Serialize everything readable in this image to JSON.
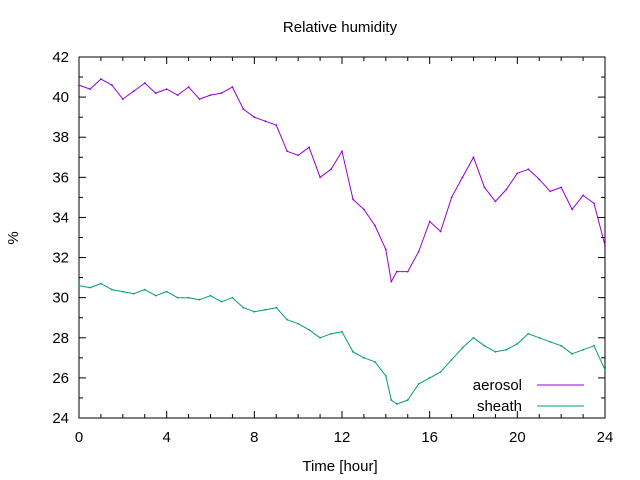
{
  "chart_data": {
    "type": "line",
    "title": "Relative humidity",
    "xlabel": "Time [hour]",
    "ylabel": "%",
    "xlim": [
      0,
      24
    ],
    "ylim": [
      24,
      42
    ],
    "x_ticks": [
      0,
      4,
      8,
      12,
      16,
      20,
      24
    ],
    "y_ticks": [
      24,
      26,
      28,
      30,
      32,
      34,
      36,
      38,
      40,
      42
    ],
    "grid": false,
    "legend_position": "bottom-right",
    "series": [
      {
        "name": "aerosol",
        "color": "#9400d3",
        "x": [
          0,
          0.5,
          1,
          1.5,
          2,
          2.5,
          3,
          3.5,
          4,
          4.5,
          5,
          5.5,
          6,
          6.5,
          7,
          7.5,
          8,
          8.5,
          9,
          9.5,
          10,
          10.5,
          11,
          11.5,
          12,
          12.5,
          13,
          13.5,
          14,
          14.25,
          14.5,
          15,
          15.5,
          16,
          16.5,
          17,
          17.5,
          18,
          18.5,
          19,
          19.5,
          20,
          20.5,
          21,
          21.5,
          22,
          22.5,
          23,
          23.5,
          24
        ],
        "values": [
          40.6,
          40.4,
          40.9,
          40.6,
          39.9,
          40.3,
          40.7,
          40.2,
          40.4,
          40.1,
          40.5,
          39.9,
          40.1,
          40.2,
          40.5,
          39.4,
          39.0,
          38.8,
          38.6,
          37.3,
          37.1,
          37.5,
          36.0,
          36.4,
          37.3,
          34.9,
          34.4,
          33.6,
          32.4,
          30.8,
          31.3,
          31.3,
          32.3,
          33.8,
          33.3,
          35.0,
          36.0,
          37.0,
          35.5,
          34.8,
          35.4,
          36.2,
          36.4,
          35.9,
          35.3,
          35.5,
          34.4,
          35.1,
          34.7,
          32.6
        ]
      },
      {
        "name": "sheath",
        "color": "#009e73",
        "x": [
          0,
          0.5,
          1,
          1.5,
          2,
          2.5,
          3,
          3.5,
          4,
          4.5,
          5,
          5.5,
          6,
          6.5,
          7,
          7.5,
          8,
          8.5,
          9,
          9.5,
          10,
          10.5,
          11,
          11.5,
          12,
          12.5,
          13,
          13.5,
          14,
          14.25,
          14.5,
          15,
          15.5,
          16,
          16.5,
          17,
          17.5,
          18,
          18.5,
          19,
          19.5,
          20,
          20.5,
          21,
          21.5,
          22,
          22.5,
          23,
          23.5,
          24
        ],
        "values": [
          30.6,
          30.5,
          30.7,
          30.4,
          30.3,
          30.2,
          30.4,
          30.1,
          30.3,
          30.0,
          30.0,
          29.9,
          30.1,
          29.8,
          30.0,
          29.5,
          29.3,
          29.4,
          29.5,
          28.9,
          28.7,
          28.4,
          28.0,
          28.2,
          28.3,
          27.3,
          27.0,
          26.8,
          26.1,
          24.9,
          24.7,
          24.9,
          25.7,
          26.0,
          26.3,
          26.9,
          27.5,
          28.0,
          27.6,
          27.3,
          27.4,
          27.7,
          28.2,
          28.0,
          27.8,
          27.6,
          27.2,
          27.4,
          27.6,
          26.4
        ]
      }
    ]
  }
}
